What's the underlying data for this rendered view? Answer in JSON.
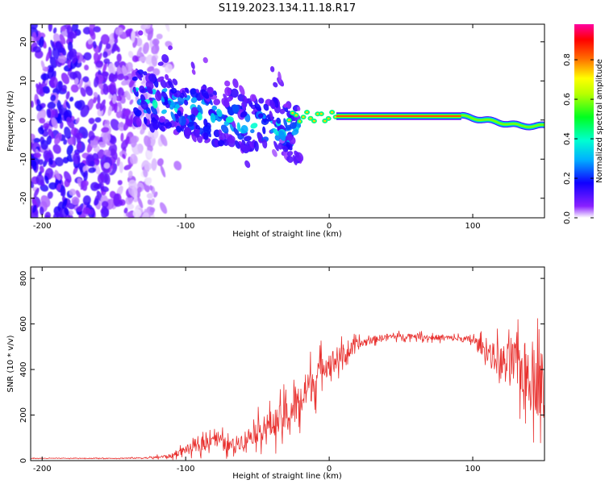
{
  "figure_title": "S119.2023.134.11.18.R17",
  "chart_data": [
    {
      "type": "heatmap",
      "xlabel": "Height of straight line (km)",
      "ylabel": "Frequency (Hz)",
      "xlim": [
        -208,
        150
      ],
      "ylim": [
        -25,
        24.5
      ],
      "xticks": [
        -200,
        -100,
        0,
        100
      ],
      "yticks": [
        -20,
        -10,
        0,
        10,
        20
      ],
      "colorbar": {
        "label": "Normalized spectral amplitude",
        "range": [
          0.0,
          0.98
        ],
        "ticks": [
          0.0,
          0.2,
          0.4,
          0.6,
          0.8
        ],
        "tick_labels": [
          "0.0",
          "0.2",
          "0.4",
          "0.6",
          "0.8"
        ],
        "colors": [
          "#ffffff",
          "#7f00ff",
          "#0000ff",
          "#00ffff",
          "#00ff00",
          "#ffff00",
          "#ff8000",
          "#ff0000",
          "#ff00aa"
        ]
      },
      "features": [
        {
          "kind": "noise",
          "x": [
            -208,
            -120
          ],
          "freq": [
            -25,
            24.5
          ],
          "amplitude": 0.15
        },
        {
          "kind": "band",
          "x": [
            -136,
            -20
          ],
          "freq_center": [
            6,
            -4
          ],
          "amplitude": 0.3
        },
        {
          "kind": "tone",
          "x": [
            5,
            92
          ],
          "freq": 1.0,
          "amplitude": 0.95
        },
        {
          "kind": "tone",
          "x": [
            92,
            150
          ],
          "freq": [
            1.0,
            -1.5
          ],
          "amplitude": 0.6
        }
      ]
    },
    {
      "type": "line",
      "xlabel": "Height of straight line (km)",
      "ylabel": "SNR (10 * v/v)",
      "xlim": [
        -208,
        150
      ],
      "ylim": [
        0,
        850
      ],
      "xticks": [
        -200,
        -100,
        0,
        100
      ],
      "yticks": [
        0,
        200,
        400,
        600,
        800
      ],
      "color": "#e8302e",
      "x": [
        -208,
        -180,
        -150,
        -125,
        -110,
        -100,
        -90,
        -80,
        -70,
        -60,
        -50,
        -40,
        -30,
        -20,
        -15,
        -10,
        -5,
        0,
        10,
        20,
        30,
        40,
        50,
        60,
        70,
        80,
        90,
        100,
        110,
        120,
        130,
        140,
        150
      ],
      "y": [
        10,
        10,
        10,
        12,
        20,
        50,
        60,
        110,
        60,
        90,
        130,
        160,
        190,
        260,
        320,
        350,
        420,
        430,
        460,
        510,
        530,
        545,
        545,
        548,
        540,
        540,
        535,
        530,
        480,
        430,
        420,
        380,
        320
      ],
      "noise": [
        2,
        2,
        3,
        6,
        15,
        30,
        40,
        60,
        45,
        60,
        80,
        100,
        120,
        140,
        130,
        130,
        90,
        90,
        70,
        40,
        25,
        20,
        20,
        20,
        20,
        20,
        20,
        30,
        70,
        130,
        180,
        230,
        270
      ]
    }
  ]
}
